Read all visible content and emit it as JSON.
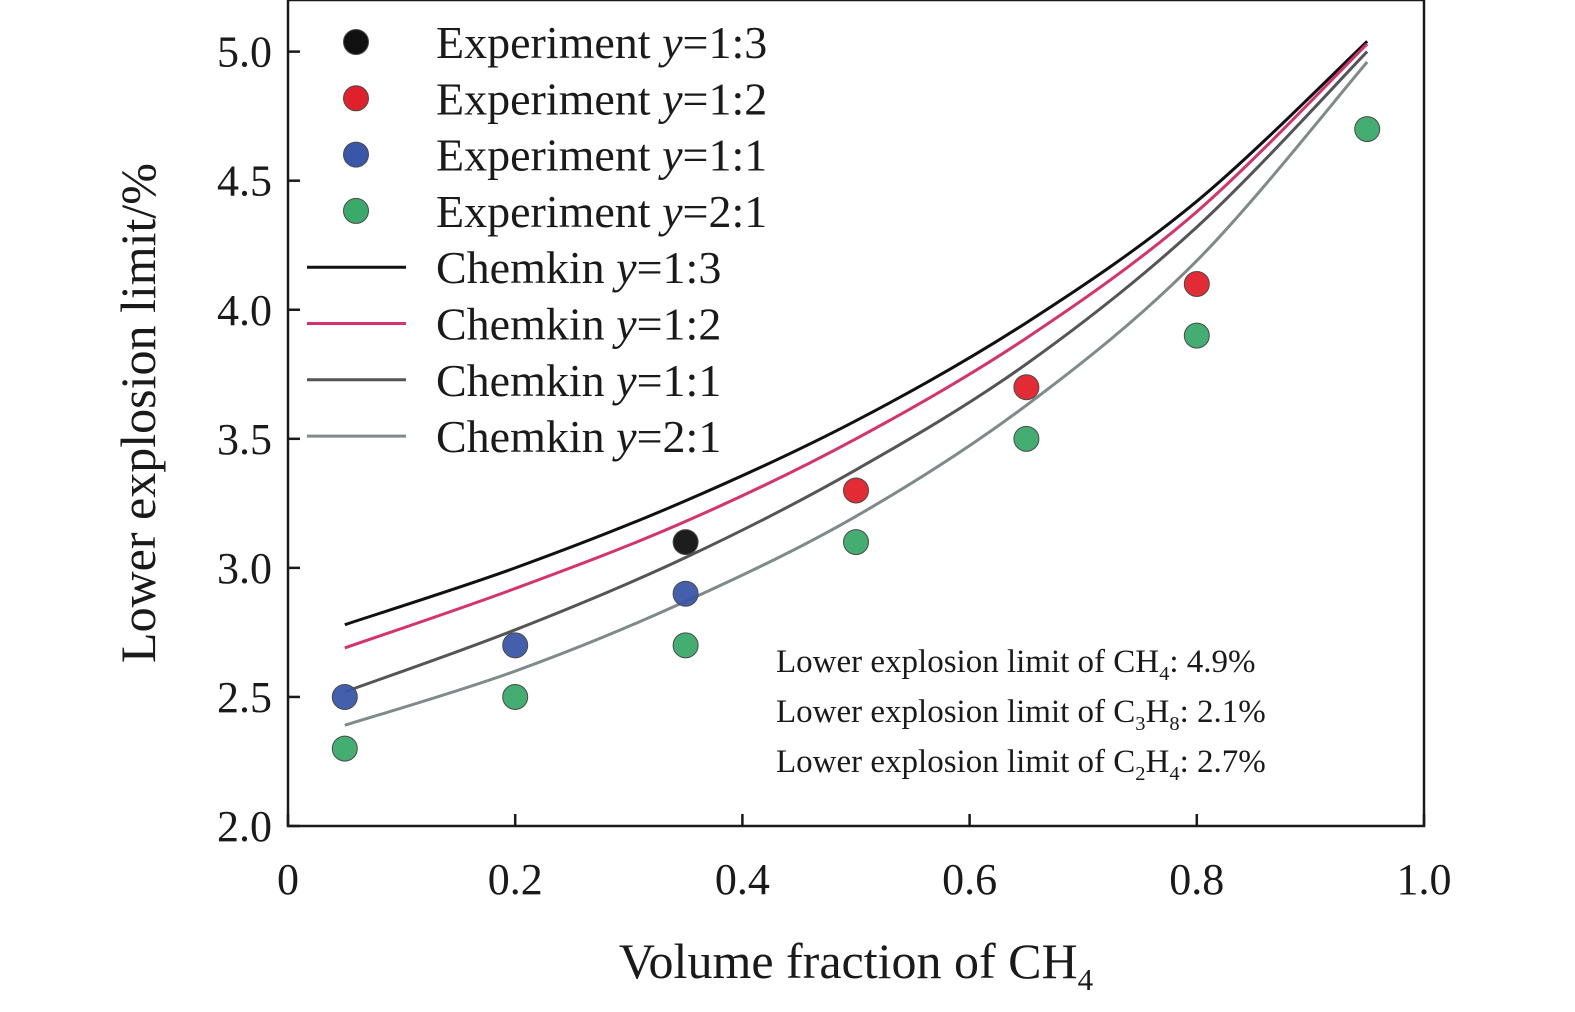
{
  "chart_data": {
    "type": "scatter",
    "xlabel": "Volume fraction of CH",
    "xlabel_sub": "4",
    "ylabel": "Lower explosion limit/%",
    "xlim": [
      0,
      1.0
    ],
    "ylim": [
      2.0,
      5.2
    ],
    "x_ticks": [
      0,
      0.2,
      0.4,
      0.6,
      0.8,
      1.0
    ],
    "x_tick_labels": [
      "0",
      "0.2",
      "0.4",
      "0.6",
      "0.8",
      "1.0"
    ],
    "y_ticks": [
      2.0,
      2.5,
      3.0,
      3.5,
      4.0,
      4.5,
      5.0
    ],
    "y_tick_labels": [
      "2.0",
      "2.5",
      "3.0",
      "3.5",
      "4.0",
      "4.5",
      "5.0"
    ],
    "grid": false,
    "legend_position": "top-left",
    "experiment_series": [
      {
        "name_prefix": "Experiment ",
        "name_var": "y",
        "name_ratio": "=1:3",
        "color": "#111111",
        "points": [
          {
            "x": 0.35,
            "y": 3.1
          }
        ]
      },
      {
        "name_prefix": "Experiment ",
        "name_var": "y",
        "name_ratio": "=1:2",
        "color": "#e0202a",
        "points": [
          {
            "x": 0.5,
            "y": 3.3
          },
          {
            "x": 0.65,
            "y": 3.7
          },
          {
            "x": 0.8,
            "y": 4.1
          }
        ]
      },
      {
        "name_prefix": "Experiment ",
        "name_var": "y",
        "name_ratio": "=1:1",
        "color": "#3a56a8",
        "points": [
          {
            "x": 0.05,
            "y": 2.5
          },
          {
            "x": 0.2,
            "y": 2.7
          },
          {
            "x": 0.35,
            "y": 2.9
          }
        ]
      },
      {
        "name_prefix": "Experiment ",
        "name_var": "y",
        "name_ratio": "=2:1",
        "color": "#3aaa6a",
        "points": [
          {
            "x": 0.05,
            "y": 2.3
          },
          {
            "x": 0.2,
            "y": 2.5
          },
          {
            "x": 0.35,
            "y": 2.7
          },
          {
            "x": 0.5,
            "y": 3.1
          },
          {
            "x": 0.65,
            "y": 3.5
          },
          {
            "x": 0.8,
            "y": 3.9
          },
          {
            "x": 0.95,
            "y": 4.7
          }
        ]
      }
    ],
    "chemkin_series": [
      {
        "name_prefix": "Chemkin ",
        "name_var": "y",
        "name_ratio": "=1:3",
        "color": "#111111",
        "points": [
          [
            0.05,
            2.78
          ],
          [
            0.2,
            3.0
          ],
          [
            0.35,
            3.26
          ],
          [
            0.5,
            3.57
          ],
          [
            0.65,
            3.95
          ],
          [
            0.8,
            4.42
          ],
          [
            0.95,
            5.04
          ]
        ]
      },
      {
        "name_prefix": "Chemkin ",
        "name_var": "y",
        "name_ratio": "=1:2",
        "color": "#d6336c",
        "points": [
          [
            0.05,
            2.69
          ],
          [
            0.2,
            2.92
          ],
          [
            0.35,
            3.18
          ],
          [
            0.5,
            3.5
          ],
          [
            0.65,
            3.89
          ],
          [
            0.8,
            4.38
          ],
          [
            0.95,
            5.03
          ]
        ]
      },
      {
        "name_prefix": "Chemkin ",
        "name_var": "y",
        "name_ratio": "=1:1",
        "color": "#555555",
        "points": [
          [
            0.05,
            2.52
          ],
          [
            0.2,
            2.76
          ],
          [
            0.35,
            3.04
          ],
          [
            0.5,
            3.38
          ],
          [
            0.65,
            3.79
          ],
          [
            0.8,
            4.32
          ],
          [
            0.95,
            5.0
          ]
        ]
      },
      {
        "name_prefix": "Chemkin ",
        "name_var": "y",
        "name_ratio": "=2:1",
        "color": "#7f8a8a",
        "points": [
          [
            0.05,
            2.39
          ],
          [
            0.2,
            2.6
          ],
          [
            0.35,
            2.87
          ],
          [
            0.5,
            3.2
          ],
          [
            0.65,
            3.63
          ],
          [
            0.8,
            4.19
          ],
          [
            0.95,
            4.96
          ]
        ]
      }
    ],
    "annotations": [
      {
        "pre": "Lower explosion limit of CH",
        "sub1": "4",
        "mid": "",
        "sub2": "",
        "post": ": 4.9%"
      },
      {
        "pre": "Lower explosion limit of C",
        "sub1": "3",
        "mid": "H",
        "sub2": "8",
        "post": ": 2.1%"
      },
      {
        "pre": "Lower explosion limit of C",
        "sub1": "2",
        "mid": "H",
        "sub2": "4",
        "post": ": 2.7%"
      }
    ]
  }
}
